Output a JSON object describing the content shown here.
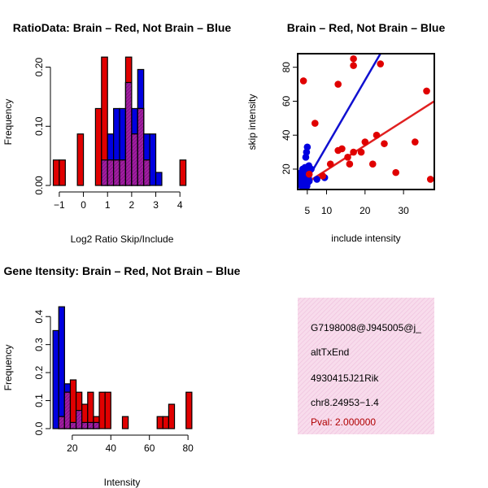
{
  "colors": {
    "red": "#e00000",
    "blue": "#0000e0",
    "purple": "#a020a0",
    "line_red": "#e02020",
    "line_blue": "#1010d0",
    "pink_bg": "#f8d9ec"
  },
  "chart_data": [
    {
      "id": "ratio",
      "type": "bar",
      "title": "RatioData: Brain – Red, Not Brain – Blue",
      "xlabel": "Log2 Ratio Skip/Include",
      "ylabel": "Frequency",
      "xlim": [
        -1.3,
        4.6
      ],
      "ylim": [
        0,
        0.22
      ],
      "xticks": [
        -1,
        0,
        1,
        2,
        3,
        4
      ],
      "xtick_labels": [
        "−1",
        "0",
        "1",
        "2",
        "3",
        "4"
      ],
      "yticks": [
        0,
        0.1,
        0.2
      ],
      "ytick_labels": [
        "0.00",
        "0.10",
        "0.20"
      ],
      "bin_edges": [
        -1.25,
        -1.0,
        -0.75,
        -0.5,
        -0.25,
        0.0,
        0.25,
        0.5,
        0.75,
        1.0,
        1.25,
        1.5,
        1.75,
        2.0,
        2.25,
        2.5,
        2.75,
        3.0,
        3.25,
        3.5,
        3.75,
        4.0,
        4.25
      ],
      "series": [
        {
          "name": "Not Brain",
          "color": "blue",
          "values": [
            0,
            0,
            0,
            0,
            0,
            0,
            0,
            0,
            0.043,
            0.087,
            0.13,
            0.13,
            0.174,
            0.13,
            0.196,
            0.087,
            0.087,
            0.022,
            0,
            0,
            0,
            0
          ]
        },
        {
          "name": "Brain",
          "color": "red",
          "values": [
            0.043,
            0.043,
            0,
            0,
            0.087,
            0,
            0,
            0.13,
            0.217,
            0.043,
            0.043,
            0.043,
            0.217,
            0.087,
            0.13,
            0.043,
            0,
            0,
            0,
            0,
            0,
            0.043
          ]
        }
      ]
    },
    {
      "id": "scatter",
      "type": "scatter",
      "title": "Brain – Red, Not Brain – Blue",
      "xlabel": "include intensity",
      "ylabel": "skip intensity",
      "xlim": [
        2.5,
        38
      ],
      "ylim": [
        8,
        88
      ],
      "xticks": [
        5,
        10,
        20,
        30
      ],
      "yticks": [
        20,
        40,
        60,
        80
      ],
      "series": [
        {
          "name": "Brain",
          "color": "red",
          "points": [
            [
              4,
              72
            ],
            [
              5.5,
              17
            ],
            [
              7,
              47
            ],
            [
              9,
              16
            ],
            [
              11,
              23
            ],
            [
              13,
              70
            ],
            [
              13,
              31
            ],
            [
              14,
              32
            ],
            [
              15.5,
              27
            ],
            [
              16,
              23
            ],
            [
              17,
              30
            ],
            [
              17,
              81
            ],
            [
              17,
              85
            ],
            [
              19,
              30
            ],
            [
              20,
              36
            ],
            [
              22,
              23
            ],
            [
              23,
              40
            ],
            [
              24,
              82
            ],
            [
              25,
              35
            ],
            [
              28,
              18
            ],
            [
              33,
              36
            ],
            [
              36,
              66
            ],
            [
              37,
              14
            ]
          ]
        },
        {
          "name": "Not Brain",
          "color": "blue",
          "points": [
            [
              3,
              15
            ],
            [
              3.2,
              12
            ],
            [
              3.4,
              18
            ],
            [
              3.5,
              10
            ],
            [
              3.6,
              14
            ],
            [
              3.8,
              20
            ],
            [
              3.9,
              16
            ],
            [
              4.0,
              12
            ],
            [
              4.1,
              9
            ],
            [
              4.2,
              17
            ],
            [
              4.3,
              13
            ],
            [
              4.4,
              21
            ],
            [
              4.5,
              15
            ],
            [
              4.6,
              11
            ],
            [
              4.7,
              19
            ],
            [
              4.8,
              14
            ],
            [
              4.9,
              10
            ],
            [
              5.0,
              16
            ],
            [
              5.1,
              12
            ],
            [
              5.2,
              18
            ],
            [
              5.3,
              15
            ],
            [
              5.4,
              22
            ],
            [
              5.5,
              13
            ],
            [
              4.6,
              27
            ],
            [
              4.8,
              30
            ],
            [
              5.0,
              33
            ],
            [
              6.0,
              20
            ],
            [
              7.5,
              14
            ],
            [
              9.5,
              15
            ]
          ]
        }
      ],
      "fits": [
        {
          "name": "Brain fit",
          "color": "line_red",
          "from": [
            3.5,
            10
          ],
          "to": [
            38,
            60
          ]
        },
        {
          "name": "Not Brain fit",
          "color": "line_blue",
          "from": [
            4,
            10
          ],
          "to": [
            24,
            88
          ]
        }
      ]
    },
    {
      "id": "intensity",
      "type": "bar",
      "title": "Gene Itensity: Brain – Red, Not Brain – Blue",
      "xlabel": "Intensity",
      "ylabel": "Frequency",
      "xlim": [
        7,
        85
      ],
      "ylim": [
        0,
        0.45
      ],
      "xticks": [
        20,
        40,
        60,
        80
      ],
      "yticks": [
        0,
        0.1,
        0.2,
        0.3,
        0.4
      ],
      "ytick_labels": [
        "0.0",
        "0.1",
        "0.2",
        "0.3",
        "0.4"
      ],
      "bin_edges": [
        10,
        13,
        16,
        19,
        22,
        25,
        28,
        31,
        34,
        37,
        40,
        43,
        46,
        49,
        52,
        55,
        58,
        61,
        64,
        67,
        70,
        73,
        76,
        79,
        82,
        85
      ],
      "series": [
        {
          "name": "Not Brain",
          "color": "blue",
          "values": [
            0.35,
            0.435,
            0.16,
            0.022,
            0.065,
            0.022,
            0.022,
            0.022,
            0,
            0,
            0,
            0,
            0,
            0,
            0,
            0,
            0,
            0,
            0,
            0,
            0,
            0,
            0,
            0,
            0
          ]
        },
        {
          "name": "Brain",
          "color": "red",
          "values": [
            0,
            0.043,
            0.13,
            0.174,
            0.13,
            0.087,
            0.13,
            0.043,
            0.13,
            0.13,
            0,
            0,
            0.043,
            0,
            0,
            0,
            0,
            0,
            0.043,
            0.043,
            0.087,
            0,
            0,
            0.13,
            0
          ]
        }
      ]
    }
  ],
  "info_box": {
    "event_id": "G7198008@J945005@j_",
    "event_type": "altTxEnd",
    "gene": "4930415J21Rik",
    "location": "chr8.24953−1.4",
    "pval": "Pval: 2.000000"
  }
}
